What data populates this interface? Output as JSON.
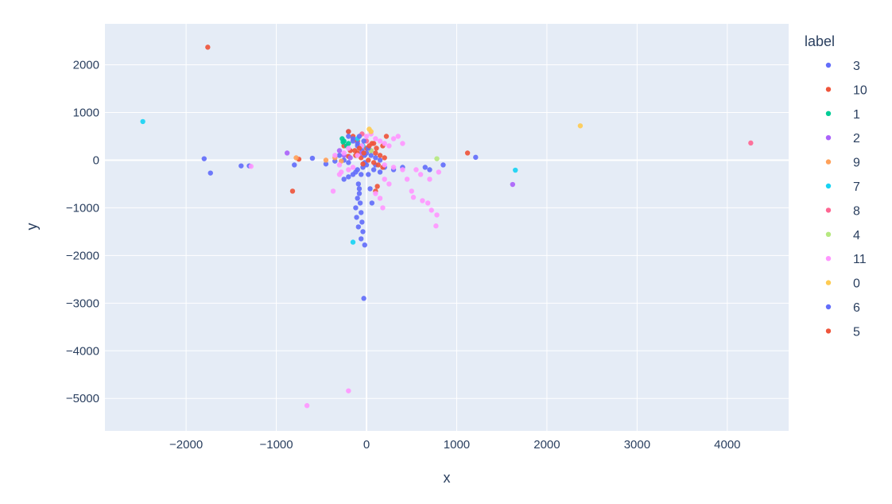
{
  "chart_data": {
    "type": "scatter",
    "xlabel": "x",
    "ylabel": "y",
    "xlim": [
      -2900,
      4680
    ],
    "ylim": [
      -5680,
      2860
    ],
    "xticks": [
      -2000,
      -1000,
      0,
      1000,
      2000,
      3000,
      4000
    ],
    "xtick_labels": [
      "−2000",
      "−1000",
      "0",
      "1000",
      "2000",
      "3000",
      "4000"
    ],
    "yticks": [
      2000,
      1000,
      0,
      -1000,
      -2000,
      -3000,
      -4000,
      -5000
    ],
    "ytick_labels": [
      "2000",
      "1000",
      "0",
      "−1000",
      "−2000",
      "−3000",
      "−4000",
      "−5000"
    ],
    "grid": true,
    "legend": {
      "title": "label",
      "placement": "right"
    },
    "series": [
      {
        "name": "3",
        "color": "#636efa",
        "points": [
          [
            -1800,
            30
          ],
          [
            -1730,
            -270
          ],
          [
            -1390,
            -120
          ],
          [
            -1300,
            -120
          ],
          [
            -800,
            -100
          ],
          [
            -600,
            40
          ],
          [
            -450,
            -80
          ],
          [
            -250,
            -400
          ],
          [
            -200,
            -350
          ],
          [
            -150,
            -300
          ],
          [
            -120,
            -250
          ],
          [
            -100,
            -200
          ],
          [
            -90,
            -500
          ],
          [
            -80,
            -700
          ],
          [
            -70,
            -900
          ],
          [
            -60,
            -1100
          ],
          [
            -50,
            -1300
          ],
          [
            -40,
            -1500
          ],
          [
            -60,
            -1650
          ],
          [
            -20,
            -1780
          ],
          [
            -30,
            -2900
          ],
          [
            -100,
            -800
          ],
          [
            -120,
            -1000
          ],
          [
            -110,
            -1200
          ],
          [
            -90,
            -1400
          ],
          [
            -80,
            -600
          ],
          [
            -60,
            -300
          ],
          [
            -40,
            -150
          ],
          [
            -20,
            -50
          ],
          [
            0,
            -100
          ],
          [
            20,
            -300
          ],
          [
            40,
            -600
          ],
          [
            60,
            -900
          ],
          [
            80,
            -200
          ],
          [
            100,
            -100
          ],
          [
            150,
            -250
          ],
          [
            200,
            -150
          ],
          [
            300,
            -200
          ],
          [
            400,
            -150
          ],
          [
            650,
            -150
          ],
          [
            700,
            -200
          ],
          [
            850,
            -100
          ],
          [
            -200,
            600
          ],
          [
            -150,
            400
          ],
          [
            -100,
            300
          ],
          [
            -50,
            200
          ],
          [
            0,
            150
          ],
          [
            50,
            100
          ],
          [
            100,
            50
          ],
          [
            150,
            0
          ],
          [
            -300,
            100
          ],
          [
            -350,
            -20
          ],
          [
            -250,
            0
          ],
          [
            -200,
            -50
          ]
        ]
      },
      {
        "name": "10",
        "color": "#ef553b",
        "points": [
          [
            -1760,
            2370
          ],
          [
            -820,
            -650
          ],
          [
            -750,
            20
          ],
          [
            -200,
            600
          ],
          [
            -150,
            500
          ],
          [
            -100,
            400
          ],
          [
            -50,
            300
          ],
          [
            0,
            250
          ],
          [
            50,
            200
          ],
          [
            100,
            150
          ],
          [
            150,
            100
          ],
          [
            200,
            50
          ],
          [
            -250,
            300
          ],
          [
            -180,
            200
          ],
          [
            -120,
            100
          ],
          [
            -60,
            50
          ],
          [
            20,
            0
          ],
          [
            80,
            -50
          ],
          [
            130,
            -100
          ],
          [
            180,
            -150
          ],
          [
            100,
            -650
          ],
          [
            120,
            -550
          ],
          [
            220,
            500
          ],
          [
            180,
            300
          ],
          [
            1120,
            150
          ],
          [
            -100,
            150
          ],
          [
            -200,
            80
          ],
          [
            -40,
            -80
          ],
          [
            60,
            350
          ],
          [
            110,
            250
          ]
        ]
      },
      {
        "name": "1",
        "color": "#00cc96",
        "points": [
          [
            -270,
            450
          ],
          [
            -250,
            400
          ],
          [
            -220,
            300
          ],
          [
            -200,
            350
          ],
          [
            -260,
            380
          ]
        ]
      },
      {
        "name": "2",
        "color": "#ab63fa",
        "points": [
          [
            -880,
            150
          ],
          [
            1620,
            -510
          ],
          [
            -300,
            200
          ],
          [
            -250,
            100
          ],
          [
            -180,
            50
          ],
          [
            -50,
            150
          ]
        ]
      },
      {
        "name": "9",
        "color": "#ffa15a",
        "points": [
          [
            -780,
            50
          ],
          [
            -450,
            0
          ],
          [
            -350,
            50
          ],
          [
            -280,
            -20
          ]
        ]
      },
      {
        "name": "7",
        "color": "#19d3f3",
        "points": [
          [
            -2480,
            810
          ],
          [
            1650,
            -210
          ],
          [
            -150,
            -1720
          ],
          [
            -100,
            450
          ],
          [
            -40,
            300
          ]
        ]
      },
      {
        "name": "8",
        "color": "#ff6692",
        "points": [
          [
            4260,
            360
          ],
          [
            -50,
            550
          ],
          [
            0,
            400
          ]
        ]
      },
      {
        "name": "4",
        "color": "#b6e880",
        "points": [
          [
            780,
            30
          ],
          [
            50,
            200
          ]
        ]
      },
      {
        "name": "11",
        "color": "#ff97ff",
        "points": [
          [
            -1280,
            -130
          ],
          [
            -200,
            -4840
          ],
          [
            -660,
            -5150
          ],
          [
            -370,
            -650
          ],
          [
            -300,
            -300
          ],
          [
            -200,
            -200
          ],
          [
            -150,
            -150
          ],
          [
            -100,
            100
          ],
          [
            -50,
            300
          ],
          [
            0,
            500
          ],
          [
            50,
            550
          ],
          [
            100,
            450
          ],
          [
            150,
            400
          ],
          [
            200,
            350
          ],
          [
            250,
            300
          ],
          [
            300,
            450
          ],
          [
            350,
            500
          ],
          [
            400,
            350
          ],
          [
            -200,
            250
          ],
          [
            -250,
            150
          ],
          [
            500,
            -650
          ],
          [
            520,
            -780
          ],
          [
            620,
            -850
          ],
          [
            680,
            -900
          ],
          [
            720,
            -1050
          ],
          [
            780,
            -1150
          ],
          [
            770,
            -1380
          ],
          [
            600,
            -300
          ],
          [
            700,
            -400
          ],
          [
            800,
            -250
          ],
          [
            400,
            -200
          ],
          [
            300,
            -150
          ],
          [
            200,
            -100
          ],
          [
            250,
            -500
          ],
          [
            180,
            -1000
          ],
          [
            100,
            -700
          ],
          [
            150,
            -800
          ],
          [
            200,
            -400
          ],
          [
            450,
            -400
          ],
          [
            550,
            -200
          ],
          [
            -300,
            -100
          ],
          [
            -350,
            100
          ],
          [
            -280,
            -250
          ]
        ]
      },
      {
        "name": "0",
        "color": "#fecb52",
        "points": [
          [
            2370,
            720
          ],
          [
            50,
            600
          ],
          [
            30,
            650
          ]
        ]
      },
      {
        "name": "6",
        "color": "#636efa",
        "points": [
          [
            1210,
            60
          ],
          [
            -200,
            500
          ],
          [
            -150,
            450
          ],
          [
            -100,
            350
          ],
          [
            -80,
            500
          ],
          [
            -30,
            400
          ],
          [
            -20,
            100
          ],
          [
            20,
            250
          ]
        ]
      },
      {
        "name": "5",
        "color": "#ef553b",
        "points": [
          [
            -130,
            200
          ],
          [
            -80,
            250
          ],
          [
            -30,
            150
          ],
          [
            30,
            300
          ],
          [
            80,
            350
          ]
        ]
      }
    ]
  }
}
